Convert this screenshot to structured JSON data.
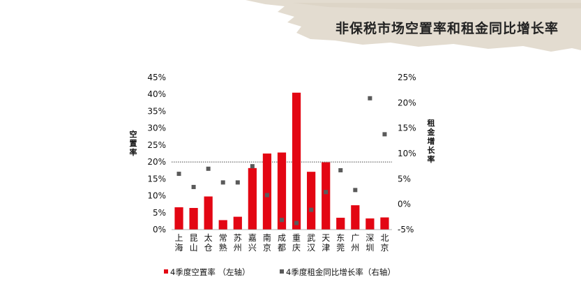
{
  "page": {
    "title": "非保税市场空置率和租金同比增长率"
  },
  "colors": {
    "bar": "#e30613",
    "marker": "#5a5a5a",
    "banner": "#e3dcd0",
    "reference_line": "#444444"
  },
  "chart_data": {
    "type": "bar",
    "categories": [
      "上海",
      "昆山",
      "太仓",
      "常熟",
      "苏州",
      "嘉兴",
      "南京",
      "成都",
      "重庆",
      "武汉",
      "天津",
      "东莞",
      "广州",
      "深圳",
      "北京"
    ],
    "series": [
      {
        "name": "4季度空置率 （左轴）",
        "type": "bar",
        "axis": "left",
        "values": [
          6.6,
          6.4,
          9.8,
          2.8,
          3.8,
          18.2,
          22.5,
          22.8,
          40.5,
          17.1,
          19.9,
          3.5,
          7.2,
          3.3,
          3.6
        ]
      },
      {
        "name": "4季度租金同比增长率（右轴）",
        "type": "scatter",
        "axis": "right",
        "values": [
          6.0,
          3.4,
          7.0,
          4.3,
          4.3,
          7.5,
          1.8,
          -3.1,
          -3.7,
          -1.1,
          2.4,
          6.7,
          2.8,
          20.9,
          13.8
        ]
      }
    ],
    "y_left": {
      "label": "空置率",
      "ylim": [
        0,
        45
      ],
      "ticks": [
        "0%",
        "5%",
        "10%",
        "15%",
        "20%",
        "25%",
        "30%",
        "35%",
        "40%",
        "45%"
      ]
    },
    "y_right": {
      "label": "租金增长率",
      "ylim": [
        -5,
        25
      ],
      "ticks": [
        "-5%",
        "0%",
        "5%",
        "10%",
        "15%",
        "20%",
        "25%"
      ]
    },
    "reference_line_left": 20,
    "grid": false,
    "legend_position": "bottom"
  }
}
